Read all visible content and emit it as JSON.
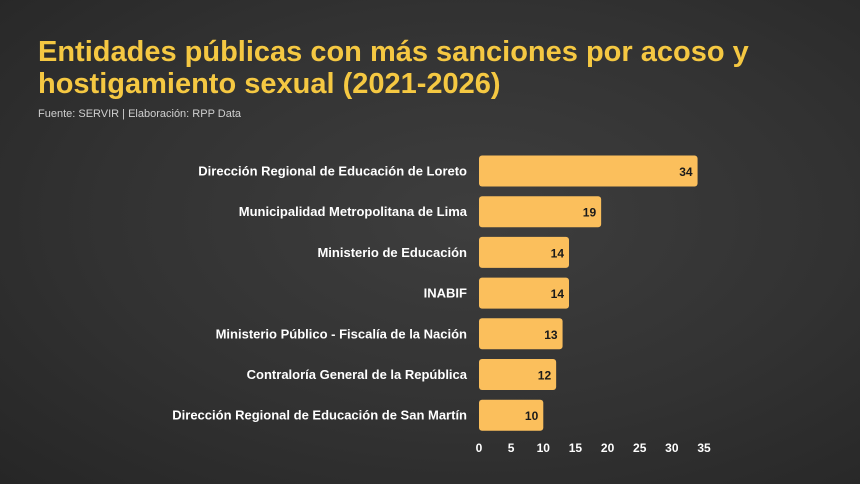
{
  "header": {
    "title": "Entidades públicas con más sanciones por acoso y hostigamiento sexual (2021-2026)",
    "source": "Fuente: SERVIR | Elaboración: RPP Data"
  },
  "colors": {
    "bar": "#fbbf5c",
    "title": "#f5c842",
    "background": "#333333"
  },
  "chart_data": {
    "type": "bar",
    "orientation": "horizontal",
    "title": "Entidades públicas con más sanciones por acoso y hostigamiento sexual (2021-2026)",
    "categories": [
      "Dirección Regional de Educación de Loreto",
      "Municipalidad Metropolitana de Lima",
      "Ministerio de Educación",
      "INABIF",
      "Ministerio Público - Fiscalía de la Nación",
      "Contraloría General de la República",
      "Dirección Regional de Educación de San Martín"
    ],
    "values": [
      34,
      19,
      14,
      14,
      13,
      12,
      10
    ],
    "xlim": [
      0,
      35
    ],
    "xticks": [
      "0",
      "5",
      "10",
      "15",
      "20",
      "25",
      "30",
      "35"
    ],
    "grid": false,
    "data_labels": true
  }
}
